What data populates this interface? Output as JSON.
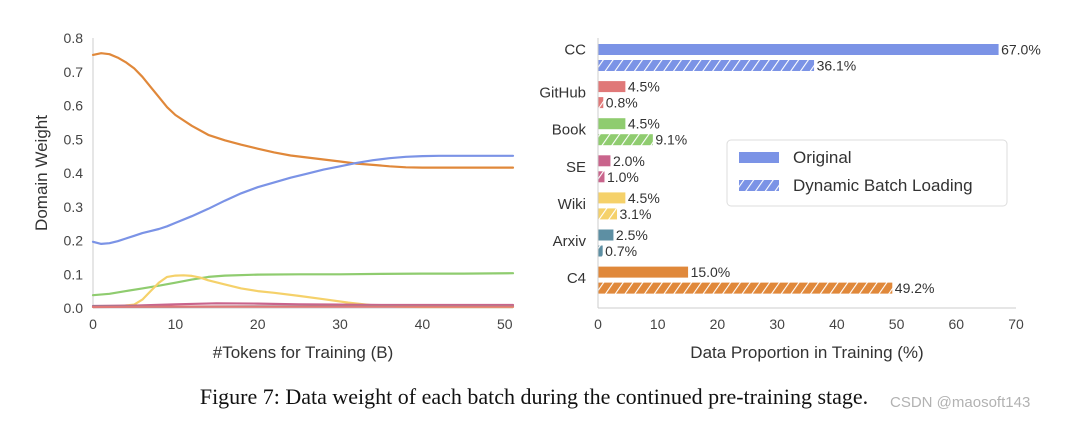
{
  "caption": "Figure 7: Data weight of each batch during the continued pre-training stage.",
  "watermark": "CSDN @maosoft143",
  "colors": {
    "blue": "#7b93e6",
    "orange": "#e0883a",
    "green": "#8fcc6f",
    "yellow": "#f5d16a",
    "pink": "#c9648c",
    "teal": "#5d8fa3",
    "red": "#e07878",
    "axis": "#cccccc"
  },
  "chart_data": [
    {
      "type": "line",
      "xlabel": "#Tokens for Training (B)",
      "ylabel": "Domain Weight",
      "xlim": [
        0,
        51
      ],
      "ylim": [
        0,
        0.8
      ],
      "xticks": [
        0,
        10,
        20,
        30,
        40,
        50
      ],
      "yticks": [
        0.0,
        0.1,
        0.2,
        0.3,
        0.4,
        0.5,
        0.6,
        0.7,
        0.8
      ],
      "ytick_labels": [
        "0.0",
        "0.1",
        "0.2",
        "0.3",
        "0.4",
        "0.5",
        "0.6",
        "0.7",
        "0.8"
      ],
      "series": [
        {
          "name": "C4",
          "color": "orange",
          "x": [
            0,
            1,
            2,
            3,
            4,
            5,
            6,
            7,
            8,
            9,
            10,
            12,
            14,
            16,
            18,
            20,
            22,
            24,
            26,
            28,
            30,
            32,
            34,
            36,
            38,
            40,
            42,
            44,
            46,
            48,
            51
          ],
          "y": [
            0.75,
            0.755,
            0.752,
            0.742,
            0.728,
            0.71,
            0.685,
            0.655,
            0.625,
            0.595,
            0.572,
            0.54,
            0.513,
            0.497,
            0.484,
            0.472,
            0.461,
            0.452,
            0.446,
            0.44,
            0.434,
            0.428,
            0.424,
            0.42,
            0.417,
            0.416,
            0.416,
            0.416,
            0.416,
            0.416,
            0.416
          ]
        },
        {
          "name": "CC",
          "color": "blue",
          "x": [
            0,
            1,
            2,
            3,
            4,
            5,
            6,
            7,
            8,
            9,
            10,
            12,
            14,
            16,
            18,
            20,
            22,
            24,
            26,
            28,
            30,
            32,
            34,
            36,
            38,
            40,
            42,
            44,
            46,
            48,
            51
          ],
          "y": [
            0.196,
            0.19,
            0.192,
            0.198,
            0.206,
            0.214,
            0.222,
            0.228,
            0.234,
            0.242,
            0.252,
            0.272,
            0.294,
            0.318,
            0.34,
            0.358,
            0.372,
            0.386,
            0.398,
            0.41,
            0.42,
            0.43,
            0.438,
            0.444,
            0.448,
            0.45,
            0.451,
            0.451,
            0.451,
            0.451,
            0.451
          ]
        },
        {
          "name": "Book",
          "color": "green",
          "x": [
            0,
            2,
            4,
            6,
            8,
            10,
            12,
            14,
            16,
            20,
            25,
            30,
            35,
            40,
            45,
            51
          ],
          "y": [
            0.038,
            0.042,
            0.05,
            0.058,
            0.066,
            0.075,
            0.084,
            0.092,
            0.096,
            0.099,
            0.1,
            0.1,
            0.101,
            0.102,
            0.102,
            0.103
          ]
        },
        {
          "name": "Wiki",
          "color": "yellow",
          "x": [
            0,
            3,
            5,
            6,
            7,
            8,
            9,
            10,
            11,
            12,
            13,
            14,
            16,
            18,
            20,
            22,
            25,
            28,
            31,
            34,
            37,
            40,
            45,
            51
          ],
          "y": [
            0.003,
            0.005,
            0.01,
            0.025,
            0.05,
            0.075,
            0.092,
            0.096,
            0.097,
            0.095,
            0.09,
            0.082,
            0.07,
            0.058,
            0.05,
            0.045,
            0.036,
            0.026,
            0.016,
            0.008,
            0.004,
            0.003,
            0.003,
            0.003
          ]
        },
        {
          "name": "SE",
          "color": "pink",
          "x": [
            0,
            5,
            10,
            15,
            20,
            25,
            30,
            35,
            40,
            45,
            51
          ],
          "y": [
            0.006,
            0.007,
            0.011,
            0.014,
            0.013,
            0.011,
            0.01,
            0.009,
            0.009,
            0.009,
            0.009
          ]
        },
        {
          "name": "Arxiv",
          "color": "teal",
          "x": [
            0,
            10,
            20,
            30,
            40,
            51
          ],
          "y": [
            0.004,
            0.004,
            0.005,
            0.005,
            0.005,
            0.005
          ]
        },
        {
          "name": "GitHub",
          "color": "red",
          "x": [
            0,
            10,
            20,
            30,
            40,
            51
          ],
          "y": [
            0.003,
            0.004,
            0.004,
            0.004,
            0.004,
            0.004
          ]
        }
      ]
    },
    {
      "type": "bar",
      "orientation": "horizontal",
      "xlabel": "Data Proportion in Training (%)",
      "xlim": [
        0,
        70
      ],
      "xticks": [
        0,
        10,
        20,
        30,
        40,
        50,
        60,
        70
      ],
      "categories": [
        "CC",
        "GitHub",
        "Book",
        "SE",
        "Wiki",
        "Arxiv",
        "C4"
      ],
      "category_colors": [
        "blue",
        "red",
        "green",
        "pink",
        "yellow",
        "teal",
        "orange"
      ],
      "series": [
        {
          "name": "Original",
          "pattern": "solid",
          "values": [
            67.0,
            4.5,
            4.5,
            2.0,
            4.5,
            2.5,
            15.0
          ],
          "labels": [
            "67.0%",
            "4.5%",
            "4.5%",
            "2.0%",
            "4.5%",
            "2.5%",
            "15.0%"
          ]
        },
        {
          "name": "Dynamic Batch Loading",
          "pattern": "hatched",
          "values": [
            36.1,
            0.8,
            9.1,
            1.0,
            3.1,
            0.7,
            49.2
          ],
          "labels": [
            "36.1%",
            "0.8%",
            "9.1%",
            "1.0%",
            "3.1%",
            "0.7%",
            "49.2%"
          ]
        }
      ],
      "legend_position": "center-right",
      "legend": [
        "Original",
        "Dynamic Batch Loading"
      ]
    }
  ]
}
